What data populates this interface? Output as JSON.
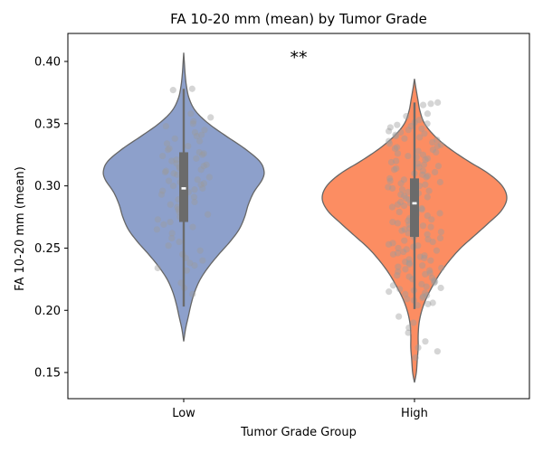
{
  "chart_data": {
    "type": "violin",
    "title": "FA 10-20 mm (mean) by Tumor Grade",
    "xlabel": "Tumor Grade Group",
    "ylabel": "FA 10-20 mm (mean)",
    "ylim": [
      0.129,
      0.4225
    ],
    "yticks": [
      0.15,
      0.2,
      0.25,
      0.3,
      0.35,
      0.4
    ],
    "ytick_labels": [
      "0.15",
      "0.20",
      "0.25",
      "0.30",
      "0.35",
      "0.40"
    ],
    "categories": [
      "Low",
      "High"
    ],
    "annotation": "**",
    "colors": {
      "Low": "#8DA0CB",
      "High": "#FC8D62",
      "box": "#6b6b6b",
      "points": "#9a9a9a",
      "outline": "#666666"
    },
    "groups": [
      {
        "name": "Low",
        "ymin_kde": 0.175,
        "ymax_kde": 0.407,
        "whisker_low": 0.203,
        "q1": 0.271,
        "median": 0.298,
        "q3": 0.327,
        "whisker_high": 0.378,
        "density_profile": [
          [
            0.175,
            0.0
          ],
          [
            0.185,
            0.02
          ],
          [
            0.195,
            0.05
          ],
          [
            0.205,
            0.08
          ],
          [
            0.215,
            0.12
          ],
          [
            0.225,
            0.18
          ],
          [
            0.235,
            0.27
          ],
          [
            0.245,
            0.38
          ],
          [
            0.255,
            0.5
          ],
          [
            0.265,
            0.6
          ],
          [
            0.275,
            0.66
          ],
          [
            0.285,
            0.7
          ],
          [
            0.295,
            0.76
          ],
          [
            0.305,
            0.85
          ],
          [
            0.312,
            0.87
          ],
          [
            0.32,
            0.82
          ],
          [
            0.33,
            0.66
          ],
          [
            0.34,
            0.46
          ],
          [
            0.35,
            0.27
          ],
          [
            0.36,
            0.13
          ],
          [
            0.37,
            0.06
          ],
          [
            0.38,
            0.03
          ],
          [
            0.39,
            0.015
          ],
          [
            0.4,
            0.006
          ],
          [
            0.407,
            0.0
          ]
        ],
        "points": [
          0.378,
          0.377,
          0.358,
          0.355,
          0.352,
          0.35,
          0.348,
          0.345,
          0.343,
          0.341,
          0.34,
          0.338,
          0.336,
          0.334,
          0.332,
          0.33,
          0.329,
          0.327,
          0.326,
          0.325,
          0.324,
          0.323,
          0.322,
          0.321,
          0.32,
          0.318,
          0.317,
          0.316,
          0.315,
          0.314,
          0.313,
          0.312,
          0.311,
          0.31,
          0.309,
          0.308,
          0.307,
          0.306,
          0.305,
          0.304,
          0.303,
          0.302,
          0.301,
          0.3,
          0.299,
          0.298,
          0.297,
          0.296,
          0.295,
          0.293,
          0.291,
          0.289,
          0.287,
          0.285,
          0.283,
          0.281,
          0.279,
          0.277,
          0.275,
          0.273,
          0.271,
          0.269,
          0.267,
          0.265,
          0.262,
          0.258,
          0.255,
          0.252,
          0.248,
          0.245,
          0.242,
          0.24,
          0.238,
          0.236,
          0.234,
          0.232,
          0.222,
          0.218,
          0.213
        ]
      },
      {
        "name": "High",
        "ymin_kde": 0.142,
        "ymax_kde": 0.386,
        "whisker_low": 0.201,
        "q1": 0.259,
        "median": 0.286,
        "q3": 0.306,
        "whisker_high": 0.367,
        "density_profile": [
          [
            0.142,
            0.0
          ],
          [
            0.15,
            0.02
          ],
          [
            0.16,
            0.03
          ],
          [
            0.17,
            0.04
          ],
          [
            0.18,
            0.04
          ],
          [
            0.19,
            0.05
          ],
          [
            0.2,
            0.08
          ],
          [
            0.21,
            0.13
          ],
          [
            0.22,
            0.2
          ],
          [
            0.23,
            0.28
          ],
          [
            0.24,
            0.38
          ],
          [
            0.25,
            0.5
          ],
          [
            0.26,
            0.65
          ],
          [
            0.27,
            0.8
          ],
          [
            0.28,
            0.94
          ],
          [
            0.29,
            1.0
          ],
          [
            0.3,
            0.95
          ],
          [
            0.31,
            0.8
          ],
          [
            0.32,
            0.58
          ],
          [
            0.33,
            0.38
          ],
          [
            0.34,
            0.22
          ],
          [
            0.35,
            0.11
          ],
          [
            0.36,
            0.06
          ],
          [
            0.37,
            0.035
          ],
          [
            0.38,
            0.012
          ],
          [
            0.386,
            0.0
          ]
        ],
        "points": [
          0.367,
          0.366,
          0.365,
          0.358,
          0.356,
          0.353,
          0.351,
          0.35,
          0.349,
          0.348,
          0.347,
          0.346,
          0.345,
          0.344,
          0.343,
          0.342,
          0.341,
          0.34,
          0.339,
          0.338,
          0.337,
          0.336,
          0.335,
          0.334,
          0.333,
          0.332,
          0.331,
          0.33,
          0.329,
          0.328,
          0.327,
          0.326,
          0.325,
          0.324,
          0.323,
          0.322,
          0.321,
          0.32,
          0.319,
          0.318,
          0.317,
          0.316,
          0.315,
          0.314,
          0.313,
          0.312,
          0.311,
          0.31,
          0.309,
          0.308,
          0.307,
          0.306,
          0.305,
          0.304,
          0.303,
          0.302,
          0.301,
          0.3,
          0.299,
          0.298,
          0.297,
          0.296,
          0.295,
          0.294,
          0.293,
          0.292,
          0.291,
          0.29,
          0.289,
          0.288,
          0.287,
          0.286,
          0.285,
          0.284,
          0.283,
          0.282,
          0.281,
          0.28,
          0.279,
          0.278,
          0.277,
          0.276,
          0.275,
          0.274,
          0.273,
          0.272,
          0.271,
          0.27,
          0.269,
          0.268,
          0.267,
          0.266,
          0.265,
          0.264,
          0.263,
          0.262,
          0.261,
          0.26,
          0.259,
          0.258,
          0.257,
          0.256,
          0.255,
          0.254,
          0.253,
          0.252,
          0.251,
          0.25,
          0.249,
          0.248,
          0.247,
          0.246,
          0.245,
          0.244,
          0.243,
          0.242,
          0.241,
          0.24,
          0.239,
          0.238,
          0.237,
          0.236,
          0.235,
          0.234,
          0.233,
          0.232,
          0.231,
          0.23,
          0.229,
          0.228,
          0.227,
          0.226,
          0.225,
          0.224,
          0.223,
          0.222,
          0.221,
          0.22,
          0.219,
          0.218,
          0.217,
          0.216,
          0.215,
          0.214,
          0.213,
          0.212,
          0.211,
          0.21,
          0.209,
          0.208,
          0.206,
          0.205,
          0.204,
          0.195,
          0.19,
          0.186,
          0.182,
          0.175,
          0.17,
          0.167,
          0.162
        ]
      }
    ]
  }
}
